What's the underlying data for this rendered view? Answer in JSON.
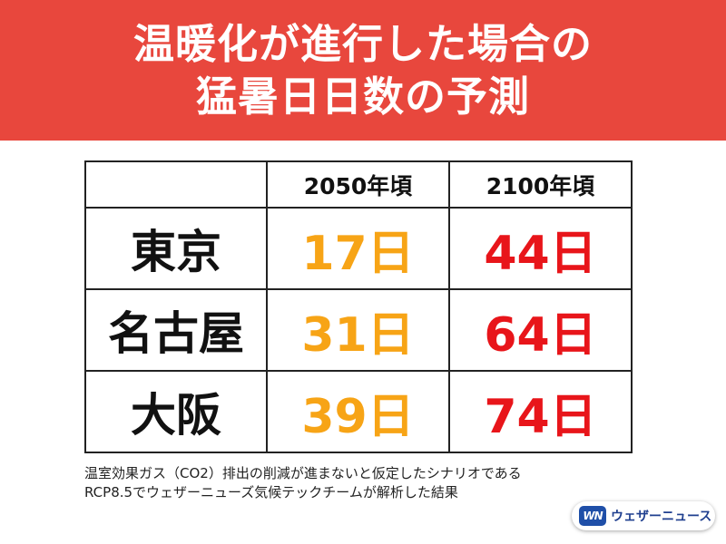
{
  "header": {
    "title_line1": "温暖化が進行した場合の",
    "title_line2": "猛暑日日数の予測"
  },
  "table": {
    "columns": [
      "",
      "2050年頃",
      "2100年頃"
    ],
    "rows": [
      {
        "city": "東京",
        "v2050": "17日",
        "v2100": "44日"
      },
      {
        "city": "名古屋",
        "v2050": "31日",
        "v2100": "64日"
      },
      {
        "city": "大阪",
        "v2050": "39日",
        "v2100": "74日"
      }
    ]
  },
  "footnote": {
    "line1": "温室効果ガス（CO2）排出の削減が進まないと仮定したシナリオである",
    "line2": "RCP8.5でウェザーニューズ気候テックチームが解析した結果"
  },
  "logo": {
    "mark": "WN",
    "brand": "ウェザーニュース"
  },
  "colors": {
    "banner": "#e8473d",
    "value_2050": "#f7a416",
    "value_2100": "#e8151a"
  }
}
